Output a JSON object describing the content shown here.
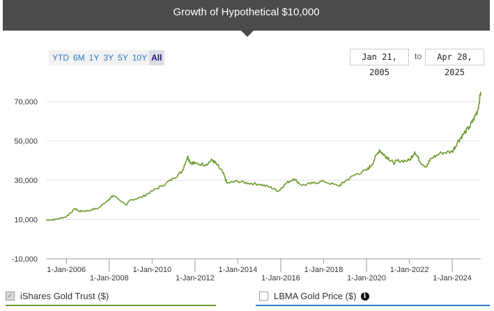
{
  "header": {
    "title": "Growth of Hypothetical $10,000"
  },
  "range_buttons": [
    "YTD",
    "6M",
    "1Y",
    "3Y",
    "5Y",
    "10Y",
    "All"
  ],
  "active_range": "All",
  "date_range": {
    "from": "Jan 21, 2005",
    "to_label": "to",
    "to": "Apr 28, 2025"
  },
  "legend": {
    "primary": {
      "label": "iShares Gold Trust ($)",
      "checked": true,
      "color": "#6b9a2c"
    },
    "secondary": {
      "label": "LBMA Gold Price ($)",
      "checked": false,
      "color": "#2b78c5"
    }
  },
  "chart_data": {
    "type": "line",
    "x_tick_labels": [
      "1-Jan-2006",
      "1-Jan-2008",
      "1-Jan-2010",
      "1-Jan-2012",
      "1-Jan-2014",
      "1-Jan-2016",
      "1-Jan-2018",
      "1-Jan-2020",
      "1-Jan-2022",
      "1-Jan-2024"
    ],
    "x_ticks": [
      2006,
      2008,
      2010,
      2012,
      2014,
      2016,
      2018,
      2020,
      2022,
      2024
    ],
    "y_tick_labels": [
      "70,000",
      "50,000",
      "30,000",
      "10,000",
      "-10,000"
    ],
    "y_ticks": [
      70000,
      50000,
      30000,
      10000,
      -10000
    ],
    "xlim": [
      2005.05,
      2025.33
    ],
    "ylim": [
      -10000,
      75000
    ],
    "grid": true,
    "series": [
      {
        "name": "iShares Gold Trust ($)",
        "color": "#6b9a2c",
        "x": [
          2005.05,
          2005.5,
          2006.0,
          2006.4,
          2006.6,
          2007.0,
          2007.5,
          2008.0,
          2008.2,
          2008.8,
          2009.0,
          2009.5,
          2010.0,
          2010.5,
          2011.0,
          2011.4,
          2011.65,
          2011.8,
          2012.0,
          2012.5,
          2012.8,
          2013.0,
          2013.3,
          2013.5,
          2014.0,
          2014.5,
          2015.0,
          2015.5,
          2015.9,
          2016.2,
          2016.6,
          2017.0,
          2017.5,
          2018.0,
          2018.7,
          2019.0,
          2019.5,
          2020.0,
          2020.25,
          2020.6,
          2020.8,
          2021.0,
          2021.25,
          2021.5,
          2022.0,
          2022.25,
          2022.5,
          2022.8,
          2023.0,
          2023.5,
          2024.0,
          2024.25,
          2024.5,
          2024.8,
          2025.0,
          2025.2,
          2025.33
        ],
        "values": [
          9800,
          10000,
          11500,
          15500,
          14200,
          14500,
          15800,
          20500,
          22200,
          17500,
          20000,
          21300,
          24500,
          27400,
          31000,
          34500,
          42000,
          39000,
          38500,
          38000,
          40300,
          38200,
          34000,
          28500,
          29500,
          28500,
          28000,
          26500,
          24500,
          28000,
          30800,
          27400,
          28500,
          29500,
          27000,
          29500,
          33000,
          35000,
          38000,
          45500,
          43000,
          41500,
          38800,
          40000,
          40000,
          44500,
          39500,
          36800,
          41000,
          44000,
          44500,
          49500,
          53200,
          57000,
          61000,
          66000,
          75000
        ]
      }
    ]
  }
}
